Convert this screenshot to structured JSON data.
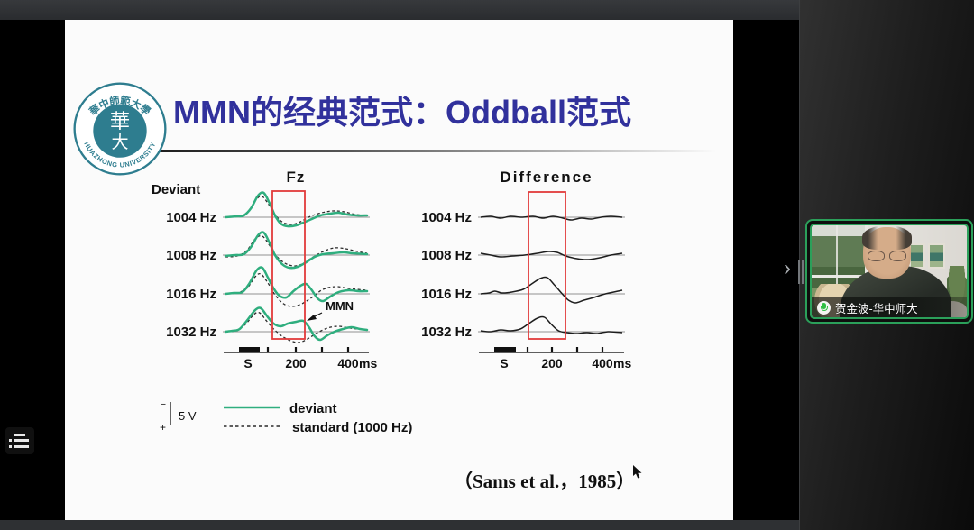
{
  "meeting": {
    "participant_name": "贺金波-华中师大",
    "panel_chevron": "›"
  },
  "slide": {
    "title": "MMN的经典范式：Oddball范式",
    "citation": "（Sams et al.，1985）",
    "logo": {
      "chinese_arc_text": "華中師範大學",
      "english_arc_text": "HUAZHONG UNIVERSITY",
      "emblem_char_top": "華",
      "emblem_char_bottom": "大"
    }
  },
  "colors": {
    "title_blue": "#31319c",
    "deviant_green": "#2fae7e",
    "standard_black": "#2b2b2b",
    "difference_black": "#1d1d1d",
    "highlight_red": "#e23b3b",
    "tile_border_green": "#2ba05a",
    "logo_teal": "#2e7d8f"
  },
  "chart_data": [
    {
      "type": "line",
      "title": "Fz",
      "corner_label": "Deviant",
      "rows": [
        "1004 Hz",
        "1008 Hz",
        "1016 Hz",
        "1032 Hz"
      ],
      "x_ticks": [
        "S",
        "200",
        "400"
      ],
      "x_unit": "ms",
      "highlight_window_ms": [
        100,
        230
      ],
      "annotation": "MMN",
      "scale_bar": {
        "label": "5 V",
        "minus": "−",
        "plus": "+"
      },
      "series_legend": [
        {
          "name": "deviant",
          "style": "solid",
          "color": "#2fae7e"
        },
        {
          "name": "standard (1000 Hz)",
          "style": "dashed",
          "color": "#2b2b2b"
        }
      ],
      "units": "points are [fraction of 0-500 ms sweep, amplitude px, negativity up]",
      "deviant": [
        [
          [
            0,
            0
          ],
          [
            0.08,
            1
          ],
          [
            0.13,
            2
          ],
          [
            0.18,
            10
          ],
          [
            0.23,
            24
          ],
          [
            0.27,
            27
          ],
          [
            0.31,
            16
          ],
          [
            0.35,
            2
          ],
          [
            0.39,
            -7
          ],
          [
            0.44,
            -10
          ],
          [
            0.5,
            -9
          ],
          [
            0.55,
            -6
          ],
          [
            0.61,
            -2
          ],
          [
            0.67,
            2
          ],
          [
            0.74,
            4
          ],
          [
            0.8,
            5
          ],
          [
            0.86,
            3
          ],
          [
            0.93,
            2
          ],
          [
            1,
            2
          ]
        ],
        [
          [
            0,
            -1
          ],
          [
            0.07,
            0
          ],
          [
            0.13,
            1
          ],
          [
            0.18,
            9
          ],
          [
            0.23,
            22
          ],
          [
            0.27,
            25
          ],
          [
            0.31,
            14
          ],
          [
            0.35,
            0
          ],
          [
            0.4,
            -10
          ],
          [
            0.45,
            -14
          ],
          [
            0.51,
            -13
          ],
          [
            0.57,
            -8
          ],
          [
            0.63,
            -2
          ],
          [
            0.69,
            1
          ],
          [
            0.76,
            2
          ],
          [
            0.83,
            3
          ],
          [
            0.9,
            2
          ],
          [
            1,
            1
          ]
        ],
        [
          [
            0,
            0
          ],
          [
            0.06,
            1
          ],
          [
            0.12,
            2
          ],
          [
            0.17,
            12
          ],
          [
            0.22,
            26
          ],
          [
            0.26,
            29
          ],
          [
            0.3,
            18
          ],
          [
            0.34,
            6
          ],
          [
            0.38,
            -2
          ],
          [
            0.43,
            -4
          ],
          [
            0.48,
            3
          ],
          [
            0.53,
            9
          ],
          [
            0.57,
            11
          ],
          [
            0.61,
            4
          ],
          [
            0.65,
            -5
          ],
          [
            0.69,
            -8
          ],
          [
            0.74,
            -3
          ],
          [
            0.8,
            2
          ],
          [
            0.87,
            4
          ],
          [
            0.94,
            3
          ],
          [
            1,
            3
          ]
        ],
        [
          [
            0,
            0
          ],
          [
            0.05,
            1
          ],
          [
            0.1,
            3
          ],
          [
            0.16,
            14
          ],
          [
            0.21,
            24
          ],
          [
            0.25,
            26
          ],
          [
            0.3,
            16
          ],
          [
            0.34,
            9
          ],
          [
            0.39,
            6
          ],
          [
            0.44,
            9
          ],
          [
            0.5,
            11
          ],
          [
            0.55,
            12
          ],
          [
            0.59,
            5
          ],
          [
            0.63,
            -5
          ],
          [
            0.67,
            -9
          ],
          [
            0.72,
            -4
          ],
          [
            0.77,
            0
          ],
          [
            0.83,
            3
          ],
          [
            0.89,
            5
          ],
          [
            0.95,
            3
          ],
          [
            1,
            2
          ]
        ]
      ],
      "standard": [
        [
          [
            0,
            0
          ],
          [
            0.09,
            1
          ],
          [
            0.16,
            6
          ],
          [
            0.22,
            20
          ],
          [
            0.26,
            23
          ],
          [
            0.31,
            13
          ],
          [
            0.36,
            1
          ],
          [
            0.41,
            -6
          ],
          [
            0.47,
            -8
          ],
          [
            0.53,
            -5
          ],
          [
            0.6,
            1
          ],
          [
            0.68,
            5
          ],
          [
            0.76,
            7
          ],
          [
            0.84,
            6
          ],
          [
            0.92,
            3
          ],
          [
            1,
            2
          ]
        ],
        [
          [
            0,
            -2
          ],
          [
            0.08,
            -1
          ],
          [
            0.15,
            5
          ],
          [
            0.21,
            18
          ],
          [
            0.26,
            21
          ],
          [
            0.31,
            11
          ],
          [
            0.36,
            -1
          ],
          [
            0.42,
            -9
          ],
          [
            0.48,
            -12
          ],
          [
            0.54,
            -10
          ],
          [
            0.61,
            -3
          ],
          [
            0.69,
            4
          ],
          [
            0.77,
            8
          ],
          [
            0.85,
            7
          ],
          [
            0.93,
            4
          ],
          [
            1,
            2
          ]
        ],
        [
          [
            0,
            0
          ],
          [
            0.08,
            1
          ],
          [
            0.15,
            6
          ],
          [
            0.21,
            19
          ],
          [
            0.25,
            22
          ],
          [
            0.3,
            12
          ],
          [
            0.35,
            -1
          ],
          [
            0.41,
            -11
          ],
          [
            0.47,
            -14
          ],
          [
            0.54,
            -11
          ],
          [
            0.61,
            -4
          ],
          [
            0.69,
            5
          ],
          [
            0.78,
            8
          ],
          [
            0.87,
            6
          ],
          [
            1,
            4
          ]
        ],
        [
          [
            0,
            0
          ],
          [
            0.07,
            1
          ],
          [
            0.14,
            8
          ],
          [
            0.2,
            19
          ],
          [
            0.24,
            21
          ],
          [
            0.29,
            12
          ],
          [
            0.34,
            3
          ],
          [
            0.4,
            -5
          ],
          [
            0.46,
            -10
          ],
          [
            0.52,
            -12
          ],
          [
            0.58,
            -8
          ],
          [
            0.64,
            -2
          ],
          [
            0.72,
            4
          ],
          [
            0.8,
            6
          ],
          [
            0.88,
            4
          ],
          [
            1,
            2
          ]
        ]
      ]
    },
    {
      "type": "line",
      "title": "Difference",
      "rows": [
        "1004 Hz",
        "1008 Hz",
        "1016 Hz",
        "1032 Hz"
      ],
      "x_ticks": [
        "S",
        "200",
        "400"
      ],
      "x_unit": "ms",
      "highlight_window_ms": [
        100,
        230
      ],
      "difference": [
        [
          [
            0,
            0
          ],
          [
            0.07,
            1
          ],
          [
            0.14,
            -1
          ],
          [
            0.21,
            1
          ],
          [
            0.29,
            0
          ],
          [
            0.37,
            1
          ],
          [
            0.44,
            -1
          ],
          [
            0.51,
            1
          ],
          [
            0.58,
            -1
          ],
          [
            0.64,
            -3
          ],
          [
            0.71,
            -1
          ],
          [
            0.78,
            -2
          ],
          [
            0.85,
            0
          ],
          [
            0.92,
            1
          ],
          [
            1,
            0
          ]
        ],
        [
          [
            0,
            2
          ],
          [
            0.07,
            0
          ],
          [
            0.14,
            -2
          ],
          [
            0.23,
            -1
          ],
          [
            0.31,
            0
          ],
          [
            0.4,
            2
          ],
          [
            0.48,
            4
          ],
          [
            0.54,
            3
          ],
          [
            0.6,
            -1
          ],
          [
            0.68,
            -4
          ],
          [
            0.76,
            -5
          ],
          [
            0.84,
            -3
          ],
          [
            0.92,
            0
          ],
          [
            1,
            2
          ]
        ],
        [
          [
            0,
            0
          ],
          [
            0.06,
            1
          ],
          [
            0.1,
            3
          ],
          [
            0.15,
            1
          ],
          [
            0.22,
            2
          ],
          [
            0.3,
            5
          ],
          [
            0.36,
            11
          ],
          [
            0.42,
            17
          ],
          [
            0.47,
            18
          ],
          [
            0.52,
            10
          ],
          [
            0.57,
            1
          ],
          [
            0.62,
            -7
          ],
          [
            0.67,
            -10
          ],
          [
            0.73,
            -7
          ],
          [
            0.8,
            -4
          ],
          [
            0.88,
            0
          ],
          [
            1,
            4
          ]
        ],
        [
          [
            0,
            1
          ],
          [
            0.07,
            0
          ],
          [
            0.14,
            2
          ],
          [
            0.21,
            1
          ],
          [
            0.28,
            3
          ],
          [
            0.34,
            9
          ],
          [
            0.4,
            15
          ],
          [
            0.45,
            16
          ],
          [
            0.5,
            8
          ],
          [
            0.55,
            1
          ],
          [
            0.61,
            -1
          ],
          [
            0.68,
            -2
          ],
          [
            0.75,
            -1
          ],
          [
            0.82,
            -2
          ],
          [
            0.9,
            0
          ],
          [
            1,
            -1
          ]
        ]
      ]
    }
  ]
}
